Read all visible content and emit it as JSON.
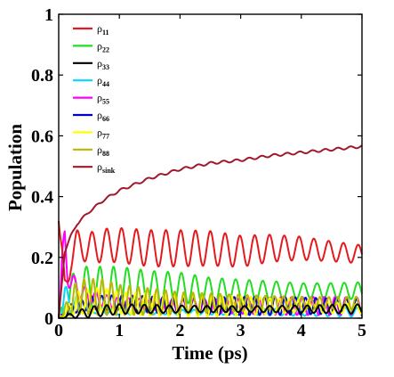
{
  "chart_data": {
    "type": "line",
    "xlabel": "Time (ps)",
    "ylabel": "Population",
    "xlim": [
      0,
      5
    ],
    "ylim": [
      0,
      1
    ],
    "xticks": [
      "0",
      "1",
      "2",
      "3",
      "4",
      "5"
    ],
    "yticks": [
      "0",
      "0.2",
      "0.4",
      "0.6",
      "0.8",
      "1"
    ],
    "legend_position": "top-left",
    "series": [
      {
        "name": "ρ11",
        "base": "ρ",
        "sub": "11",
        "color": "#e41a1c",
        "x": [
          0,
          0.05,
          0.1,
          0.2,
          0.3,
          0.4,
          0.5,
          0.75,
          1.0,
          1.5,
          2.0,
          2.5,
          3.0,
          3.5,
          4.0,
          4.5,
          5.0
        ],
        "y": [
          0.32,
          0.2,
          0.1,
          0.2,
          0.24,
          0.24,
          0.23,
          0.24,
          0.24,
          0.23,
          0.23,
          0.23,
          0.22,
          0.23,
          0.23,
          0.22,
          0.21
        ],
        "osc_amp": [
          0.0,
          0.05,
          0.06,
          0.06,
          0.06,
          0.06,
          0.06,
          0.06,
          0.06,
          0.06,
          0.06,
          0.06,
          0.06,
          0.06,
          0.06,
          0.06,
          0.06
        ]
      },
      {
        "name": "ρ22",
        "base": "ρ",
        "sub": "22",
        "color": "#22dd22",
        "x": [
          0,
          0.1,
          0.3,
          0.5,
          1.0,
          1.5,
          2.0,
          2.5,
          3.0,
          3.5,
          4.0,
          4.5,
          5.0
        ],
        "y": [
          0.0,
          0.05,
          0.1,
          0.1,
          0.1,
          0.1,
          0.1,
          0.09,
          0.09,
          0.09,
          0.09,
          0.09,
          0.09
        ],
        "osc_amp": [
          0.0,
          0.05,
          0.07,
          0.07,
          0.07,
          0.06,
          0.06,
          0.06,
          0.06,
          0.06,
          0.05,
          0.05,
          0.05
        ]
      },
      {
        "name": "ρ33",
        "base": "ρ",
        "sub": "33",
        "color": "#000000",
        "x": [
          0,
          0.5,
          1.0,
          2.0,
          3.0,
          4.0,
          5.0
        ],
        "y": [
          0.0,
          0.02,
          0.03,
          0.03,
          0.03,
          0.03,
          0.03
        ],
        "osc_amp": [
          0.0,
          0.02,
          0.02,
          0.02,
          0.02,
          0.02,
          0.02
        ]
      },
      {
        "name": "ρ44",
        "base": "ρ",
        "sub": "44",
        "color": "#00d8ff",
        "x": [
          0,
          0.1,
          0.3,
          0.5,
          1.0,
          2.0,
          3.0,
          4.0,
          5.0
        ],
        "y": [
          0.0,
          0.06,
          0.05,
          0.03,
          0.02,
          0.02,
          0.02,
          0.02,
          0.02
        ],
        "osc_amp": [
          0.0,
          0.06,
          0.04,
          0.02,
          0.015,
          0.015,
          0.015,
          0.015,
          0.015
        ]
      },
      {
        "name": "ρ55",
        "base": "ρ",
        "sub": "55",
        "color": "#ff00ff",
        "x": [
          0,
          0.05,
          0.1,
          0.15,
          0.2,
          0.4,
          0.7,
          1.0,
          2.0,
          3.0,
          4.0,
          5.0
        ],
        "y": [
          0.0,
          0.15,
          0.25,
          0.15,
          0.12,
          0.08,
          0.06,
          0.05,
          0.04,
          0.04,
          0.04,
          0.04
        ],
        "osc_amp": [
          0.0,
          0.1,
          0.1,
          0.08,
          0.06,
          0.05,
          0.04,
          0.035,
          0.03,
          0.03,
          0.03,
          0.03
        ]
      },
      {
        "name": "ρ66",
        "base": "ρ",
        "sub": "66",
        "color": "#0000cc",
        "x": [
          0,
          0.2,
          0.5,
          1.0,
          2.0,
          3.0,
          4.0,
          5.0
        ],
        "y": [
          0.0,
          0.03,
          0.05,
          0.05,
          0.04,
          0.04,
          0.04,
          0.04
        ],
        "osc_amp": [
          0.0,
          0.03,
          0.04,
          0.04,
          0.03,
          0.03,
          0.03,
          0.03
        ]
      },
      {
        "name": "ρ77",
        "base": "ρ",
        "sub": "77",
        "color": "#ffff00",
        "x": [
          0,
          0.3,
          0.7,
          1.0,
          2.0,
          3.0,
          4.0,
          5.0
        ],
        "y": [
          0.0,
          0.05,
          0.06,
          0.05,
          0.04,
          0.04,
          0.04,
          0.03
        ],
        "osc_amp": [
          0.0,
          0.05,
          0.05,
          0.04,
          0.035,
          0.035,
          0.03,
          0.03
        ]
      },
      {
        "name": "ρ88",
        "base": "ρ",
        "sub": "88",
        "color": "#b8b800",
        "x": [
          0,
          0.3,
          0.7,
          1.0,
          2.0,
          3.0,
          4.0,
          5.0
        ],
        "y": [
          0.0,
          0.07,
          0.07,
          0.06,
          0.05,
          0.05,
          0.05,
          0.05
        ],
        "osc_amp": [
          0.0,
          0.06,
          0.06,
          0.05,
          0.04,
          0.04,
          0.04,
          0.04
        ]
      },
      {
        "name": "ρsink",
        "base": "ρ",
        "sub": "sink",
        "color": "#a0182c",
        "x": [
          0,
          0.1,
          0.2,
          0.3,
          0.5,
          0.75,
          1.0,
          1.25,
          1.5,
          2.0,
          2.5,
          3.0,
          3.5,
          4.0,
          4.5,
          5.0
        ],
        "y": [
          0.0,
          0.22,
          0.27,
          0.31,
          0.35,
          0.39,
          0.42,
          0.44,
          0.46,
          0.49,
          0.51,
          0.52,
          0.535,
          0.545,
          0.555,
          0.565
        ],
        "osc_amp": [
          0,
          0,
          0,
          0,
          0,
          0,
          0,
          0,
          0,
          0,
          0,
          0,
          0,
          0,
          0,
          0
        ]
      }
    ]
  }
}
